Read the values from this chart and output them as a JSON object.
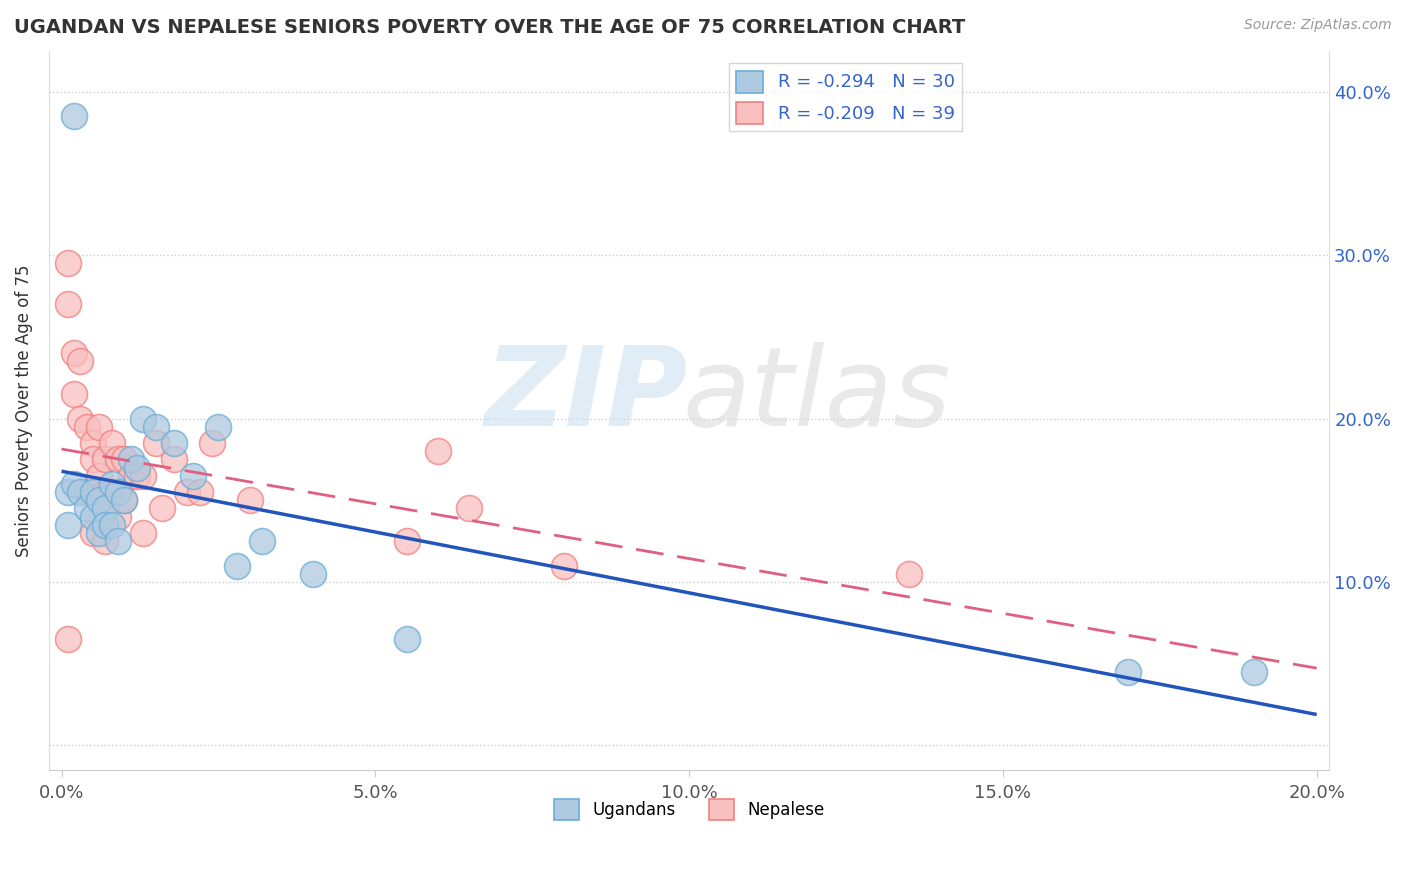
{
  "title": "UGANDAN VS NEPALESE SENIORS POVERTY OVER THE AGE OF 75 CORRELATION CHART",
  "source_text": "Source: ZipAtlas.com",
  "ylabel": "Seniors Poverty Over the Age of 75",
  "ugandan_color": "#6baed6",
  "nepalese_color": "#f08080",
  "ugandan_color_fill": "#aec9e0",
  "nepalese_color_fill": "#f9c0c0",
  "ugandan_R": -0.294,
  "ugandan_N": 30,
  "nepalese_R": -0.209,
  "nepalese_N": 39,
  "legend_R_color": "#3366cc",
  "xlim": [
    -0.002,
    0.202
  ],
  "ylim": [
    -0.015,
    0.425
  ],
  "xtick_vals": [
    0.0,
    0.05,
    0.1,
    0.15,
    0.2
  ],
  "xtick_labels": [
    "0.0%",
    "5.0%",
    "10.0%",
    "15.0%",
    "20.0%"
  ],
  "ytick_vals": [
    0.0,
    0.1,
    0.2,
    0.3,
    0.4
  ],
  "ytick_labels": [
    "",
    "10.0%",
    "20.0%",
    "30.0%",
    "40.0%"
  ],
  "ugandan_x": [
    0.002,
    0.001,
    0.001,
    0.002,
    0.003,
    0.004,
    0.005,
    0.005,
    0.006,
    0.006,
    0.007,
    0.007,
    0.008,
    0.008,
    0.009,
    0.009,
    0.01,
    0.011,
    0.012,
    0.013,
    0.015,
    0.018,
    0.021,
    0.025,
    0.028,
    0.032,
    0.04,
    0.055,
    0.17,
    0.19
  ],
  "ugandan_y": [
    0.385,
    0.155,
    0.135,
    0.16,
    0.155,
    0.145,
    0.155,
    0.14,
    0.15,
    0.13,
    0.145,
    0.135,
    0.16,
    0.135,
    0.155,
    0.125,
    0.15,
    0.175,
    0.17,
    0.2,
    0.195,
    0.185,
    0.165,
    0.195,
    0.11,
    0.125,
    0.105,
    0.065,
    0.045,
    0.045
  ],
  "nepalese_x": [
    0.001,
    0.001,
    0.001,
    0.002,
    0.002,
    0.003,
    0.003,
    0.004,
    0.004,
    0.005,
    0.005,
    0.005,
    0.006,
    0.006,
    0.007,
    0.007,
    0.007,
    0.008,
    0.008,
    0.009,
    0.009,
    0.01,
    0.01,
    0.011,
    0.012,
    0.013,
    0.013,
    0.015,
    0.016,
    0.018,
    0.02,
    0.022,
    0.024,
    0.03,
    0.055,
    0.06,
    0.065,
    0.08,
    0.135
  ],
  "nepalese_y": [
    0.295,
    0.27,
    0.065,
    0.24,
    0.215,
    0.235,
    0.2,
    0.195,
    0.155,
    0.185,
    0.175,
    0.13,
    0.195,
    0.165,
    0.175,
    0.155,
    0.125,
    0.185,
    0.155,
    0.175,
    0.14,
    0.175,
    0.15,
    0.165,
    0.165,
    0.165,
    0.13,
    0.185,
    0.145,
    0.175,
    0.155,
    0.155,
    0.185,
    0.15,
    0.125,
    0.18,
    0.145,
    0.11,
    0.105
  ]
}
